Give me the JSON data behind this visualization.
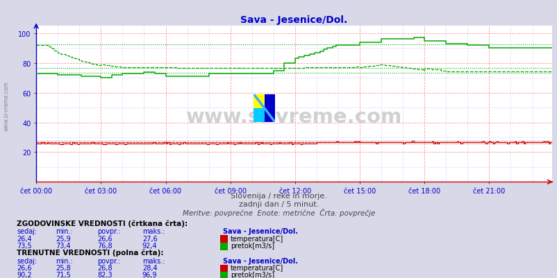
{
  "title": "Sava - Jesenice/Dol.",
  "title_color": "#0000cc",
  "bg_color": "#d8d8e8",
  "plot_bg_color": "#ffffff",
  "xlabel_color": "#0000cc",
  "ylabel_color": "#0000cc",
  "x_ticks": [
    "čet 00:00",
    "čet 03:00",
    "čet 06:00",
    "čet 09:00",
    "čet 12:00",
    "čet 15:00",
    "čet 18:00",
    "čet 21:00"
  ],
  "x_tick_positions": [
    0,
    36,
    72,
    108,
    144,
    180,
    216,
    252
  ],
  "y_ticks": [
    20,
    40,
    60,
    80,
    100
  ],
  "ylim": [
    0,
    105
  ],
  "n_points": 288,
  "subtitle1": "Slovenija / reke in morje.",
  "subtitle2": "zadnji dan / 5 minut.",
  "subtitle3": "Meritve: povprečne  Enote: metrične  Črta: povprečje",
  "watermark": "www.si-vreme.com",
  "footnote_color": "#555555",
  "temp_color": "#cc0000",
  "flow_color": "#00aa00",
  "hist_min_flow": 73.4,
  "hist_avg_flow": 76.8,
  "hist_max_flow": 92.4,
  "hist_min_temp": 25.9,
  "hist_avg_temp": 26.6,
  "hist_max_temp": 27.6,
  "table": {
    "hist_label": "ZGODOVINSKE VREDNOSTI (črtkana črta):",
    "curr_label": "TRENUTNE VREDNOSTI (polna črta):",
    "cols": [
      "sedaj:",
      "min.:",
      "povpr.:",
      "maks.:",
      "Sava - Jesenice/Dol."
    ],
    "hist_temp": [
      "26,4",
      "25,9",
      "26,6",
      "27,6"
    ],
    "hist_flow": [
      "73,5",
      "73,4",
      "76,8",
      "92,4"
    ],
    "curr_temp": [
      "26,6",
      "25,8",
      "26,8",
      "28,4"
    ],
    "curr_flow": [
      "90,2",
      "71,5",
      "82,3",
      "96,9"
    ],
    "temp_label": "temperatura[C]",
    "flow_label": "pretok[m3/s]"
  }
}
